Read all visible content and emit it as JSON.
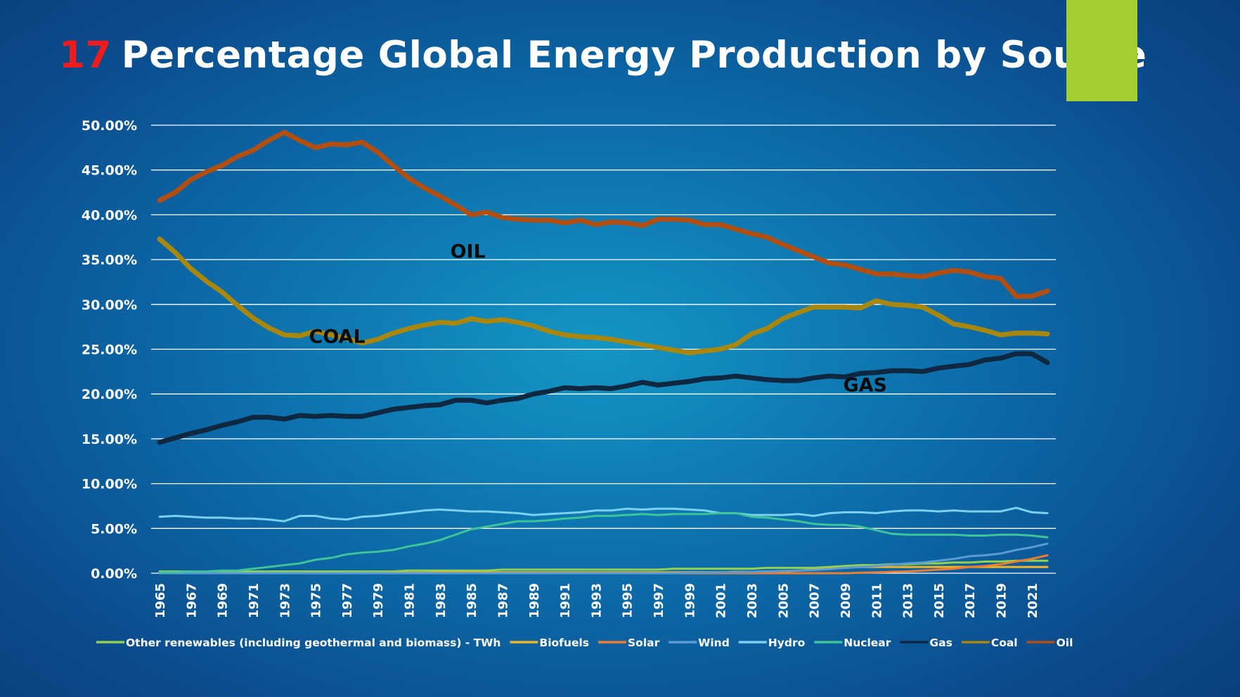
{
  "slide": {
    "number": "17",
    "title": "Percentage Global Energy Production by Source"
  },
  "colors": {
    "background": "#0d6aa6",
    "accent": "#a4cf2e",
    "title_number": "#ee1c1c",
    "gridline": "#ffffff"
  },
  "chart_data": {
    "type": "line",
    "title": "Percentage Global Energy Production by Source",
    "xlabel": "",
    "ylabel": "",
    "ylim": [
      0,
      50
    ],
    "yticks": [
      "0.00%",
      "5.00%",
      "10.00%",
      "15.00%",
      "20.00%",
      "25.00%",
      "30.00%",
      "35.00%",
      "40.00%",
      "45.00%",
      "50.00%"
    ],
    "grid": true,
    "legend_position": "bottom",
    "x": [
      1965,
      1966,
      1967,
      1968,
      1969,
      1970,
      1971,
      1972,
      1973,
      1974,
      1975,
      1976,
      1977,
      1978,
      1979,
      1980,
      1981,
      1982,
      1983,
      1984,
      1985,
      1986,
      1987,
      1988,
      1989,
      1990,
      1991,
      1992,
      1993,
      1994,
      1995,
      1996,
      1997,
      1998,
      1999,
      2000,
      2001,
      2002,
      2003,
      2004,
      2005,
      2006,
      2007,
      2008,
      2009,
      2010,
      2011,
      2012,
      2013,
      2014,
      2015,
      2016,
      2017,
      2018,
      2019,
      2020,
      2021,
      2022
    ],
    "xticks": [
      "1965",
      "1967",
      "1969",
      "1971",
      "1973",
      "1975",
      "1977",
      "1979",
      "1981",
      "1983",
      "1985",
      "1987",
      "1989",
      "1991",
      "1993",
      "1995",
      "1997",
      "1999",
      "2001",
      "2003",
      "2005",
      "2007",
      "2009",
      "2011",
      "2013",
      "2015",
      "2017",
      "2019",
      "2021"
    ],
    "series": [
      {
        "name": "Other renewables (including geothermal and biomass) - TWh",
        "color": "#92d050",
        "width": 3,
        "values": [
          0.2,
          0.2,
          0.2,
          0.2,
          0.2,
          0.2,
          0.2,
          0.2,
          0.2,
          0.2,
          0.2,
          0.2,
          0.2,
          0.2,
          0.2,
          0.2,
          0.3,
          0.3,
          0.3,
          0.3,
          0.3,
          0.3,
          0.4,
          0.4,
          0.4,
          0.4,
          0.4,
          0.4,
          0.4,
          0.4,
          0.4,
          0.4,
          0.4,
          0.5,
          0.5,
          0.5,
          0.5,
          0.5,
          0.5,
          0.6,
          0.6,
          0.6,
          0.6,
          0.7,
          0.8,
          0.9,
          0.9,
          1.0,
          1.0,
          1.1,
          1.1,
          1.2,
          1.2,
          1.3,
          1.3,
          1.4,
          1.4,
          1.4
        ]
      },
      {
        "name": "Biofuels",
        "color": "#f0b429",
        "width": 3,
        "values": [
          0.0,
          0.0,
          0.0,
          0.0,
          0.0,
          0.0,
          0.0,
          0.0,
          0.0,
          0.0,
          0.0,
          0.0,
          0.0,
          0.0,
          0.0,
          0.05,
          0.05,
          0.05,
          0.1,
          0.1,
          0.1,
          0.1,
          0.1,
          0.1,
          0.1,
          0.1,
          0.1,
          0.1,
          0.1,
          0.1,
          0.1,
          0.1,
          0.1,
          0.1,
          0.1,
          0.1,
          0.1,
          0.15,
          0.15,
          0.2,
          0.2,
          0.3,
          0.4,
          0.5,
          0.6,
          0.7,
          0.7,
          0.7,
          0.7,
          0.7,
          0.7,
          0.7,
          0.7,
          0.7,
          0.7,
          0.7,
          0.7,
          0.7
        ]
      },
      {
        "name": "Solar",
        "color": "#ed7d31",
        "width": 3,
        "values": [
          0,
          0,
          0,
          0,
          0,
          0,
          0,
          0,
          0,
          0,
          0,
          0,
          0,
          0,
          0,
          0,
          0,
          0,
          0,
          0,
          0,
          0,
          0,
          0,
          0,
          0,
          0,
          0,
          0,
          0,
          0,
          0,
          0,
          0,
          0,
          0,
          0,
          0,
          0,
          0,
          0,
          0,
          0,
          0,
          0,
          0.05,
          0.1,
          0.15,
          0.2,
          0.3,
          0.4,
          0.5,
          0.7,
          0.8,
          1.0,
          1.3,
          1.6,
          2.0
        ]
      },
      {
        "name": "Wind",
        "color": "#5b9bd5",
        "width": 3,
        "values": [
          0,
          0,
          0,
          0,
          0,
          0,
          0,
          0,
          0,
          0,
          0,
          0,
          0,
          0,
          0,
          0,
          0,
          0,
          0,
          0,
          0,
          0,
          0,
          0,
          0,
          0,
          0,
          0,
          0,
          0,
          0,
          0,
          0,
          0,
          0.05,
          0.05,
          0.1,
          0.1,
          0.15,
          0.2,
          0.25,
          0.3,
          0.35,
          0.45,
          0.6,
          0.7,
          0.8,
          0.95,
          1.1,
          1.2,
          1.4,
          1.6,
          1.9,
          2.0,
          2.2,
          2.6,
          2.9,
          3.3
        ]
      },
      {
        "name": "Hydro",
        "color": "#7dd0f0",
        "width": 3,
        "values": [
          6.3,
          6.4,
          6.3,
          6.2,
          6.2,
          6.1,
          6.1,
          6.0,
          5.8,
          6.4,
          6.4,
          6.1,
          6.0,
          6.3,
          6.4,
          6.6,
          6.8,
          7.0,
          7.1,
          7.0,
          6.9,
          6.9,
          6.8,
          6.7,
          6.5,
          6.6,
          6.7,
          6.8,
          7.0,
          7.0,
          7.2,
          7.1,
          7.2,
          7.2,
          7.1,
          7.0,
          6.7,
          6.7,
          6.5,
          6.5,
          6.5,
          6.6,
          6.4,
          6.7,
          6.8,
          6.8,
          6.7,
          6.9,
          7.0,
          7.0,
          6.9,
          7.0,
          6.9,
          6.9,
          6.9,
          7.3,
          6.8,
          6.7
        ]
      },
      {
        "name": "Nuclear",
        "color": "#3fc39b",
        "width": 3,
        "values": [
          0.1,
          0.1,
          0.2,
          0.2,
          0.3,
          0.3,
          0.5,
          0.7,
          0.9,
          1.1,
          1.5,
          1.7,
          2.1,
          2.3,
          2.4,
          2.6,
          3.0,
          3.3,
          3.7,
          4.3,
          4.9,
          5.2,
          5.5,
          5.8,
          5.8,
          5.9,
          6.1,
          6.2,
          6.4,
          6.4,
          6.5,
          6.6,
          6.5,
          6.6,
          6.6,
          6.6,
          6.7,
          6.7,
          6.3,
          6.2,
          6.0,
          5.8,
          5.5,
          5.4,
          5.4,
          5.2,
          4.8,
          4.4,
          4.3,
          4.3,
          4.3,
          4.3,
          4.2,
          4.2,
          4.3,
          4.3,
          4.2,
          4.0
        ]
      },
      {
        "name": "Gas",
        "color": "#0e2841",
        "width": 7,
        "values": [
          14.6,
          15.1,
          15.6,
          16.0,
          16.5,
          16.9,
          17.4,
          17.4,
          17.2,
          17.6,
          17.5,
          17.6,
          17.5,
          17.5,
          17.9,
          18.3,
          18.5,
          18.7,
          18.8,
          19.3,
          19.3,
          19.0,
          19.3,
          19.5,
          20.0,
          20.3,
          20.7,
          20.6,
          20.7,
          20.6,
          20.9,
          21.3,
          21.0,
          21.2,
          21.4,
          21.7,
          21.8,
          22.0,
          21.8,
          21.6,
          21.5,
          21.5,
          21.8,
          22.0,
          21.9,
          22.3,
          22.4,
          22.6,
          22.6,
          22.5,
          22.9,
          23.1,
          23.3,
          23.8,
          24.0,
          24.5,
          24.5,
          23.5
        ]
      },
      {
        "name": "Coal",
        "color": "#a9860c",
        "width": 7,
        "values": [
          37.3,
          35.8,
          34.0,
          32.6,
          31.4,
          29.9,
          28.5,
          27.4,
          26.6,
          26.5,
          27.0,
          26.6,
          26.2,
          25.7,
          26.1,
          26.8,
          27.3,
          27.7,
          28.0,
          27.9,
          28.4,
          28.1,
          28.3,
          28.0,
          27.6,
          27.0,
          26.6,
          26.4,
          26.3,
          26.1,
          25.8,
          25.5,
          25.2,
          24.9,
          24.6,
          24.8,
          25.0,
          25.5,
          26.7,
          27.3,
          28.4,
          29.1,
          29.7,
          29.7,
          29.7,
          29.6,
          30.4,
          30.0,
          29.9,
          29.7,
          28.8,
          27.8,
          27.5,
          27.1,
          26.6,
          26.8,
          26.8,
          26.7
        ]
      },
      {
        "name": "Oil",
        "color": "#b24e0f",
        "width": 7,
        "values": [
          41.6,
          42.5,
          43.9,
          44.8,
          45.5,
          46.5,
          47.2,
          48.3,
          49.2,
          48.3,
          47.5,
          47.9,
          47.8,
          48.1,
          47.0,
          45.5,
          44.1,
          43.0,
          42.1,
          41.1,
          40.0,
          40.3,
          39.7,
          39.5,
          39.4,
          39.4,
          39.1,
          39.4,
          38.9,
          39.2,
          39.1,
          38.8,
          39.5,
          39.5,
          39.4,
          38.9,
          38.9,
          38.4,
          37.9,
          37.5,
          36.7,
          36.0,
          35.3,
          34.6,
          34.4,
          33.9,
          33.4,
          33.4,
          33.2,
          33.1,
          33.5,
          33.8,
          33.6,
          33.1,
          32.9,
          30.9,
          30.9,
          31.5
        ]
      }
    ],
    "annotations": [
      {
        "text": "OIL",
        "x": 1984.8,
        "y": 35.2
      },
      {
        "text": "COAL",
        "x": 1976.4,
        "y": 25.7
      },
      {
        "text": "GAS",
        "x": 2010.3,
        "y": 20.3
      }
    ]
  }
}
